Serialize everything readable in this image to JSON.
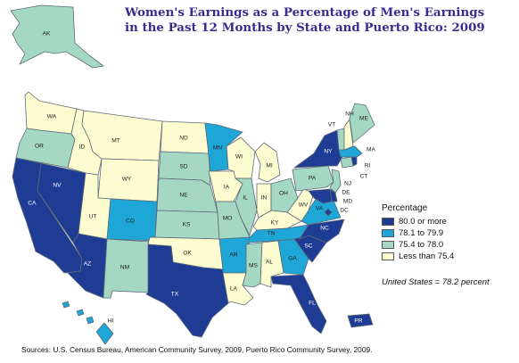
{
  "title": "Women's Earnings as a Percentage of Men's Earnings in the Past 12 Months by State and Puerto Rico: 2009",
  "legend": {
    "title": "Percentage",
    "classes": [
      {
        "label": "80.0 or more",
        "color": "#1f3c94"
      },
      {
        "label": "78.1 to 79.9",
        "color": "#1ea6d7"
      },
      {
        "label": "75.4 to 78.0",
        "color": "#a4d8c3"
      },
      {
        "label": "Less than 75.4",
        "color": "#fdfcd1"
      }
    ]
  },
  "us_note": "United States = 78.2 percent",
  "source": "Sources: U.S. Census Bureau, American Community Survey, 2009, Puerto Rico Community Survey, 2009.",
  "states": {
    "AK": 2,
    "WA": 3,
    "OR": 2,
    "CA": 0,
    "NV": 0,
    "ID": 3,
    "MT": 3,
    "WY": 3,
    "UT": 3,
    "AZ": 0,
    "CO": 1,
    "NM": 2,
    "ND": 3,
    "SD": 2,
    "NE": 2,
    "KS": 2,
    "OK": 3,
    "TX": 0,
    "MN": 1,
    "IA": 3,
    "MO": 2,
    "AR": 1,
    "LA": 3,
    "WI": 3,
    "IL": 2,
    "MI": 3,
    "IN": 3,
    "OH": 2,
    "KY": 3,
    "TN": 1,
    "MS": 2,
    "AL": 3,
    "GA": 1,
    "FL": 0,
    "SC": 0,
    "NC": 0,
    "VA": 1,
    "WV": 3,
    "PA": 2,
    "NY": 0,
    "VT": 2,
    "NH": 3,
    "ME": 2,
    "MA": 1,
    "RI": 0,
    "CT": 2,
    "NJ": 2,
    "DE": 0,
    "MD": 0,
    "DC": 0,
    "HI": 1,
    "PR": 0
  }
}
